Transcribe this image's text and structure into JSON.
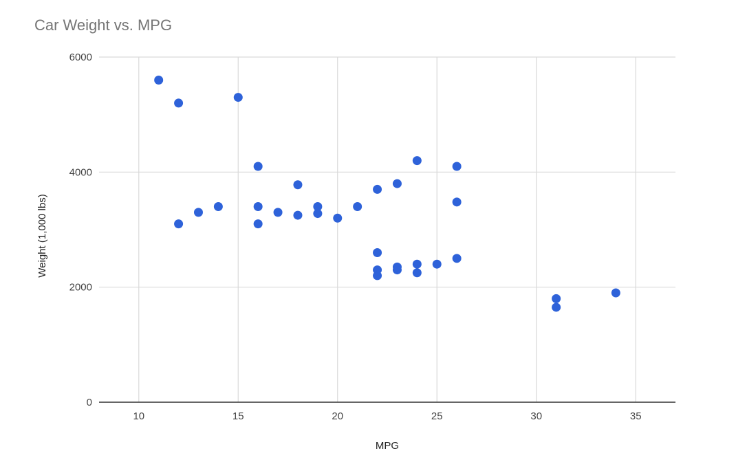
{
  "chart_data": {
    "type": "scatter",
    "title": "Car Weight vs. MPG",
    "xlabel": "MPG",
    "ylabel": "Weight (1,000 lbs)",
    "xlim": [
      8,
      37
    ],
    "ylim": [
      0,
      6000
    ],
    "x_ticks": [
      10,
      15,
      20,
      25,
      30,
      35
    ],
    "y_ticks": [
      0,
      2000,
      4000,
      6000
    ],
    "grid": true,
    "legend": "none",
    "point_color": "#2e62d9",
    "series": [
      {
        "points": [
          [
            11,
            5600
          ],
          [
            12,
            5200
          ],
          [
            15,
            5300
          ],
          [
            12,
            3100
          ],
          [
            13,
            3300
          ],
          [
            14,
            3400
          ],
          [
            16,
            4100
          ],
          [
            16,
            3400
          ],
          [
            16,
            3100
          ],
          [
            17,
            3300
          ],
          [
            18,
            3780
          ],
          [
            18,
            3250
          ],
          [
            19,
            3400
          ],
          [
            19,
            3280
          ],
          [
            20,
            3200
          ],
          [
            21,
            3400
          ],
          [
            22,
            3700
          ],
          [
            22,
            2600
          ],
          [
            22,
            2300
          ],
          [
            22,
            2200
          ],
          [
            23,
            3800
          ],
          [
            23,
            2350
          ],
          [
            23,
            2300
          ],
          [
            24,
            4200
          ],
          [
            24,
            2400
          ],
          [
            24,
            2250
          ],
          [
            25,
            2400
          ],
          [
            26,
            4100
          ],
          [
            26,
            3480
          ],
          [
            26,
            2500
          ],
          [
            31,
            1800
          ],
          [
            31,
            1650
          ],
          [
            34,
            1900
          ]
        ]
      }
    ]
  }
}
